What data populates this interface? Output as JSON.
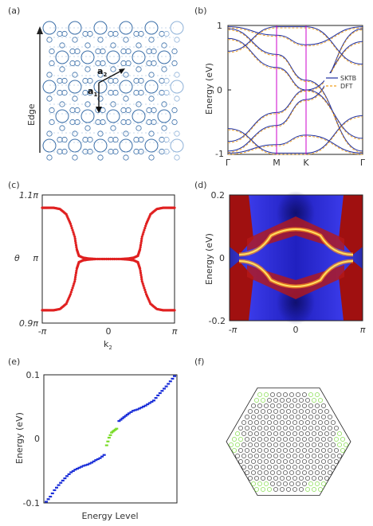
{
  "panel_labels": [
    "(a)",
    "(b)",
    "(c)",
    "(d)",
    "(e)",
    "(f)"
  ],
  "panel_a": {
    "edge_label": "Edge",
    "vec1_main": "a",
    "vec1_sub": "1",
    "vec2_main": "a",
    "vec2_sub": "2",
    "colors": {
      "lattice": "#3a6ea8",
      "lattice_faint": "#8fb2d8"
    }
  },
  "panel_b": {
    "ylabel": "Energy (eV)",
    "ytick_top": "1",
    "ytick_mid": "0",
    "ytick_bot": "-1",
    "xticks": [
      "Γ",
      "M",
      "K",
      "Γ"
    ],
    "legend": [
      "SKTB",
      "DFT"
    ],
    "colors": {
      "sktb": "#1f2f9f",
      "dft": "#f0a020",
      "kline": "#cc00cc"
    }
  },
  "panel_c": {
    "ylabel": "θ",
    "xlabel_main": "k",
    "xlabel_sub": "2",
    "yticks": [
      "1.1π",
      "π",
      "0.9π"
    ],
    "xticks": [
      "-π",
      "0",
      "π"
    ],
    "colors": {
      "points": "#e02020"
    }
  },
  "panel_d": {
    "ylabel": "Energy (eV)",
    "yticks": [
      "0.2",
      "0",
      "-0.2"
    ],
    "xticks": [
      "-π",
      "0",
      "π"
    ],
    "colors": {
      "red": "#a01010",
      "blue": "#3030e0",
      "band": "#f0c000"
    }
  },
  "panel_e": {
    "ylabel": "Energy (eV)",
    "xlabel": "Energy Level",
    "yticks": [
      "0.1",
      "0",
      "-0.1"
    ],
    "colors": {
      "bulk": "#1a2ed8",
      "edge": "#7bdc2a"
    }
  },
  "panel_f": {
    "colors": {
      "lattice": "#222222",
      "corner": "#6cd62a"
    }
  },
  "chart_data": [
    {
      "panel": "(c)",
      "type": "scatter",
      "xlabel": "k2",
      "ylabel": "θ",
      "xlim": [
        -3.1416,
        3.1416
      ],
      "ylim": [
        0.9,
        1.1
      ],
      "y_units": "π",
      "series": [
        {
          "values_note_free": true,
          "x": [
            -3.14,
            -2.9,
            -2.6,
            -2.3,
            -2.0,
            -1.8,
            -1.6,
            -1.5,
            -1.4,
            -1.2,
            -1.0,
            -0.6,
            0,
            0.6,
            1.0,
            1.2,
            1.4,
            1.5,
            1.6,
            1.8,
            2.0,
            2.3,
            2.6,
            2.9,
            3.14
          ],
          "y_upper": [
            1.08,
            1.08,
            1.08,
            1.078,
            1.07,
            1.055,
            1.035,
            1.015,
            1.005,
            1.002,
            1.001,
            1.0,
            1.0,
            1.0,
            1.001,
            1.002,
            1.005,
            1.015,
            1.035,
            1.055,
            1.07,
            1.078,
            1.08,
            1.08,
            1.08
          ],
          "y_lower": [
            0.92,
            0.92,
            0.92,
            0.922,
            0.93,
            0.945,
            0.965,
            0.985,
            0.995,
            0.998,
            0.999,
            1.0,
            1.0,
            1.0,
            0.999,
            0.998,
            0.995,
            0.985,
            0.965,
            0.945,
            0.93,
            0.922,
            0.92,
            0.92,
            0.92
          ]
        }
      ]
    },
    {
      "panel": "(e)",
      "type": "scatter",
      "xlabel": "Energy Level",
      "ylabel": "Energy (eV)",
      "ylim": [
        -0.1,
        0.1
      ],
      "series": [
        {
          "name": "",
          "x": [
            0,
            5,
            10,
            15,
            20,
            25,
            30,
            35,
            40,
            45,
            50,
            55,
            60,
            65,
            70
          ],
          "y": [
            -0.098,
            -0.09,
            -0.08,
            -0.072,
            -0.065,
            -0.058,
            -0.052,
            -0.048,
            -0.045,
            -0.042,
            -0.04,
            -0.037,
            -0.033,
            -0.03,
            -0.025
          ]
        },
        {
          "name": "",
          "x": [
            73,
            76,
            79,
            82,
            85
          ],
          "y": [
            -0.01,
            0.002,
            0.01,
            0.013,
            0.016
          ]
        },
        {
          "name": "",
          "x": [
            88,
            92,
            96,
            100,
            105,
            110,
            115,
            120,
            125,
            130,
            135,
            140,
            145,
            150,
            155
          ],
          "y": [
            0.028,
            0.032,
            0.036,
            0.04,
            0.044,
            0.046,
            0.049,
            0.052,
            0.056,
            0.06,
            0.068,
            0.075,
            0.082,
            0.09,
            0.098
          ]
        }
      ]
    }
  ]
}
